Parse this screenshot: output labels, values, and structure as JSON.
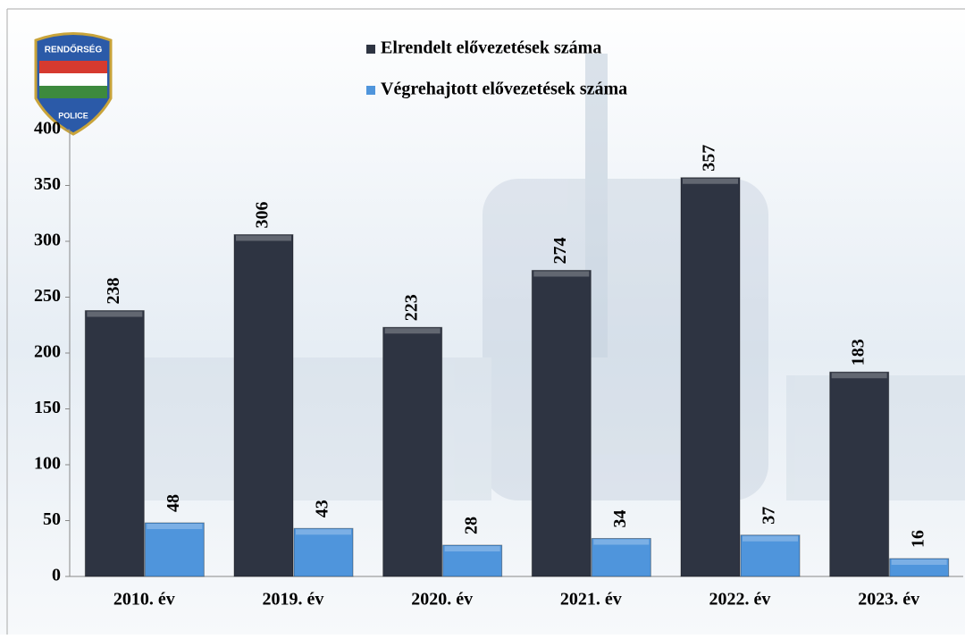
{
  "logo": {
    "top": "RENDŐRSÉG",
    "bottom": "POLICE"
  },
  "chart_data": {
    "type": "bar",
    "categories": [
      "2010. év",
      "2019. év",
      "2020. év",
      "2021. év",
      "2022. év",
      "2023. év"
    ],
    "series": [
      {
        "name": "Elrendelt elővezetések száma",
        "color": "#2e3442",
        "values": [
          238,
          306,
          223,
          274,
          357,
          183
        ]
      },
      {
        "name": "Végrehajtott elővezetések száma",
        "color": "#4f95dc",
        "values": [
          48,
          43,
          28,
          34,
          37,
          16
        ]
      }
    ],
    "ylim": [
      0,
      400
    ],
    "yticks": [
      0,
      50,
      100,
      150,
      200,
      250,
      300,
      350,
      400
    ],
    "legend": "top"
  }
}
